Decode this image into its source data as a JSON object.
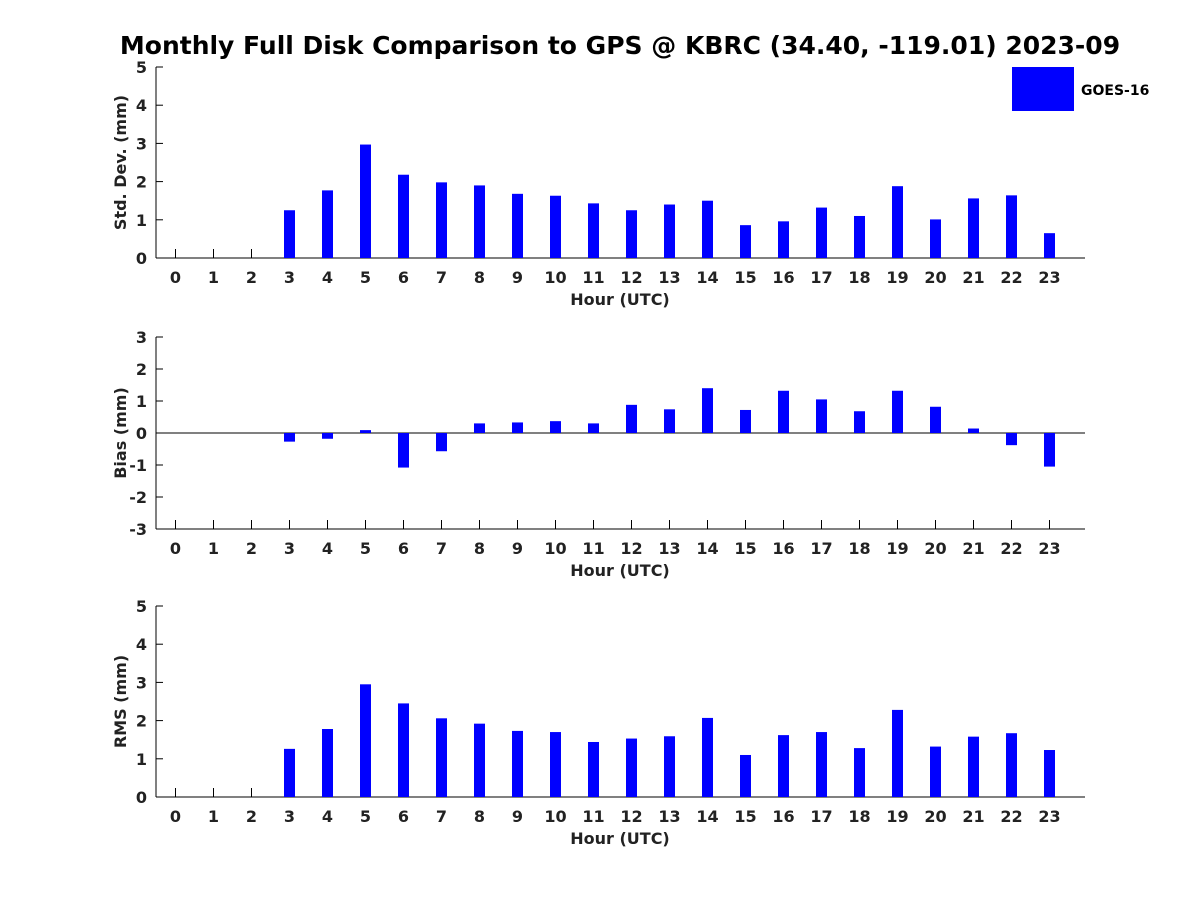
{
  "title": "Monthly Full Disk Comparison to GPS @ KBRC (34.40, -119.01) 2023-09",
  "colors": {
    "bar": "#0000ff"
  },
  "chart_data": [
    {
      "type": "bar",
      "title": "Monthly Full Disk Comparison to GPS @ KBRC (34.40, -119.01) 2023-09",
      "xlabel": "Hour (UTC)",
      "ylabel": "Std. Dev. (mm)",
      "categories": [
        "0",
        "1",
        "2",
        "3",
        "4",
        "5",
        "6",
        "7",
        "8",
        "9",
        "10",
        "11",
        "12",
        "13",
        "14",
        "15",
        "16",
        "17",
        "18",
        "19",
        "20",
        "21",
        "22",
        "23"
      ],
      "ylim": [
        0,
        5
      ],
      "yticks": [
        "0",
        "1",
        "2",
        "3",
        "4",
        "5"
      ],
      "series": [
        {
          "name": "GOES-16",
          "values": [
            null,
            null,
            null,
            1.25,
            1.77,
            2.97,
            2.18,
            1.98,
            1.9,
            1.68,
            1.63,
            1.43,
            1.25,
            1.4,
            1.5,
            0.86,
            0.96,
            1.32,
            1.1,
            1.88,
            1.01,
            1.56,
            1.64,
            0.65
          ]
        }
      ],
      "legend": {
        "entries": [
          "GOES-16"
        ],
        "position": "top-right"
      }
    },
    {
      "type": "bar",
      "xlabel": "Hour (UTC)",
      "ylabel": "Bias (mm)",
      "categories": [
        "0",
        "1",
        "2",
        "3",
        "4",
        "5",
        "6",
        "7",
        "8",
        "9",
        "10",
        "11",
        "12",
        "13",
        "14",
        "15",
        "16",
        "17",
        "18",
        "19",
        "20",
        "21",
        "22",
        "23"
      ],
      "ylim": [
        -3,
        3
      ],
      "yticks": [
        "-3",
        "-2",
        "-1",
        "0",
        "1",
        "2",
        "3"
      ],
      "series": [
        {
          "name": "GOES-16",
          "values": [
            null,
            null,
            null,
            -0.27,
            -0.18,
            0.09,
            -1.08,
            -0.57,
            0.3,
            0.33,
            0.37,
            0.3,
            0.88,
            0.74,
            1.4,
            0.72,
            1.32,
            1.05,
            0.68,
            1.32,
            0.82,
            0.14,
            -0.38,
            -1.05
          ]
        }
      ]
    },
    {
      "type": "bar",
      "xlabel": "Hour (UTC)",
      "ylabel": "RMS (mm)",
      "categories": [
        "0",
        "1",
        "2",
        "3",
        "4",
        "5",
        "6",
        "7",
        "8",
        "9",
        "10",
        "11",
        "12",
        "13",
        "14",
        "15",
        "16",
        "17",
        "18",
        "19",
        "20",
        "21",
        "22",
        "23"
      ],
      "ylim": [
        0,
        5
      ],
      "yticks": [
        "0",
        "1",
        "2",
        "3",
        "4",
        "5"
      ],
      "series": [
        {
          "name": "GOES-16",
          "values": [
            null,
            null,
            null,
            1.26,
            1.78,
            2.95,
            2.45,
            2.06,
            1.92,
            1.73,
            1.7,
            1.44,
            1.53,
            1.59,
            2.07,
            1.1,
            1.62,
            1.7,
            1.28,
            2.28,
            1.32,
            1.58,
            1.67,
            1.23
          ]
        }
      ]
    }
  ]
}
